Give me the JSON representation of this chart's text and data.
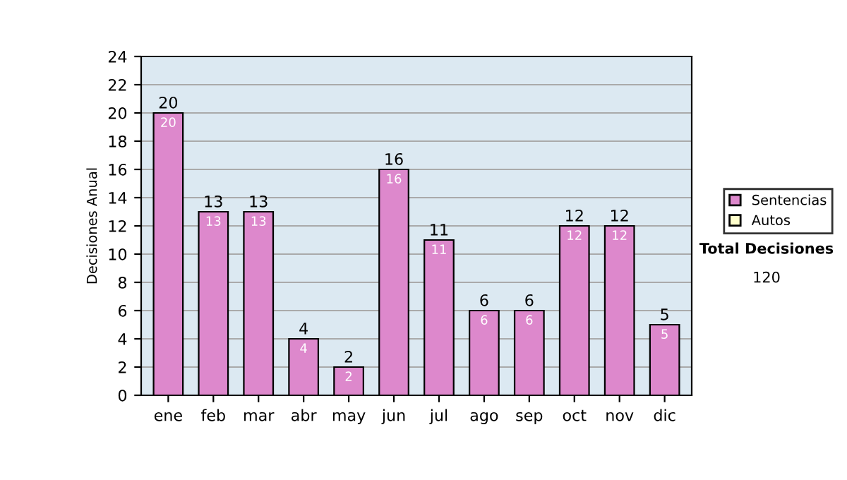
{
  "chart_data": {
    "type": "bar",
    "ylabel": "Decisiones Anual",
    "categories": [
      "ene",
      "feb",
      "mar",
      "abr",
      "may",
      "jun",
      "jul",
      "ago",
      "sep",
      "oct",
      "nov",
      "dic"
    ],
    "series": [
      {
        "name": "Sentencias",
        "color": "#dd88cc",
        "values": [
          20,
          13,
          13,
          4,
          2,
          16,
          11,
          6,
          6,
          12,
          12,
          5
        ],
        "value_labels": [
          "20",
          "13",
          "13",
          "4",
          "2",
          "16",
          "11",
          "6",
          "6",
          "12",
          "12",
          "5"
        ]
      },
      {
        "name": "Autos",
        "color": "#ffffcc",
        "values": [
          null,
          null,
          null,
          null,
          null,
          null,
          null,
          null,
          null,
          null,
          null,
          null
        ]
      }
    ],
    "stacked": true,
    "totals": [
      "20",
      "13",
      "13",
      "4",
      "2",
      "16",
      "11",
      "6",
      "6",
      "12",
      "12",
      "5"
    ],
    "ylim": [
      0,
      24
    ],
    "yticks": [
      0,
      2,
      4,
      6,
      8,
      10,
      12,
      14,
      16,
      18,
      20,
      22,
      24
    ],
    "grid": "y",
    "legend": "right",
    "annotations": [
      "Total Decisiones",
      "120"
    ]
  }
}
